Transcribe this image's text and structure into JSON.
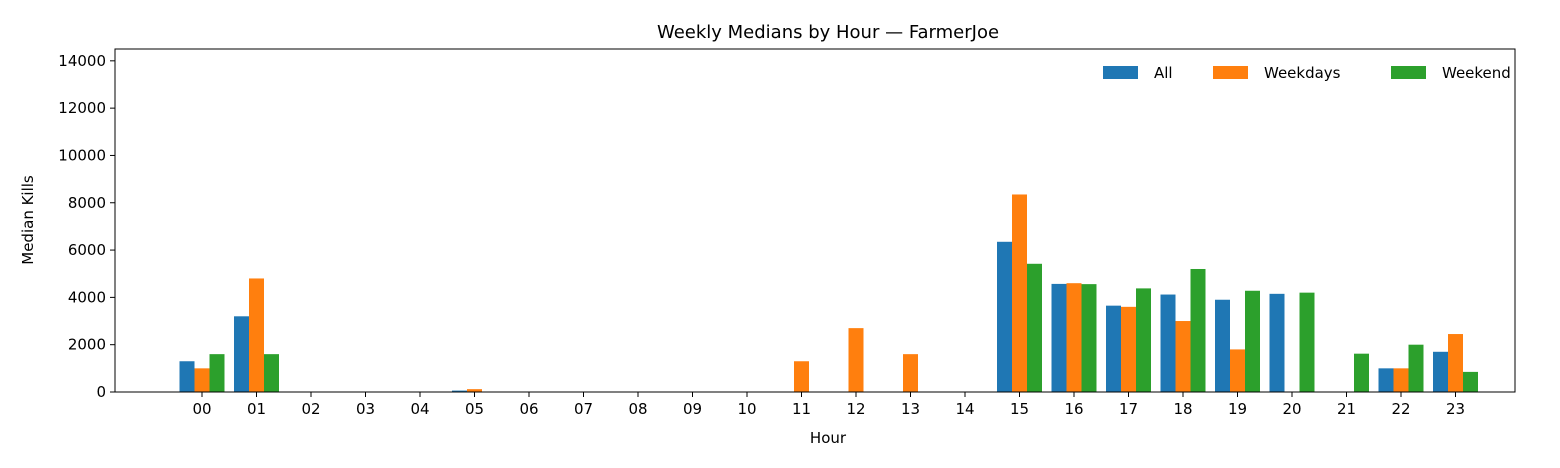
{
  "chart_data": {
    "type": "bar",
    "title": "Weekly Medians by Hour — FarmerJoe",
    "xlabel": "Hour",
    "ylabel": "Median Kills",
    "ylim": [
      0,
      14500
    ],
    "yticks": [
      0,
      2000,
      4000,
      6000,
      8000,
      10000,
      12000,
      14000
    ],
    "grid": false,
    "legend_position": "top-right",
    "categories": [
      "00",
      "01",
      "02",
      "03",
      "04",
      "05",
      "06",
      "07",
      "08",
      "09",
      "10",
      "11",
      "12",
      "13",
      "14",
      "15",
      "16",
      "17",
      "18",
      "19",
      "20",
      "21",
      "22",
      "23"
    ],
    "series": [
      {
        "name": "All",
        "color": "#1f77b4",
        "values": [
          1300,
          3200,
          0,
          0,
          0,
          60,
          0,
          0,
          0,
          0,
          0,
          0,
          0,
          0,
          0,
          6350,
          4570,
          3650,
          4120,
          3900,
          4150,
          0,
          1000,
          1700
        ]
      },
      {
        "name": "Weekdays",
        "color": "#ff7f0e",
        "values": [
          1000,
          4800,
          0,
          0,
          0,
          120,
          0,
          0,
          0,
          0,
          0,
          1300,
          2700,
          1600,
          0,
          8350,
          4600,
          3600,
          3000,
          1800,
          0,
          0,
          1000,
          2450
        ]
      },
      {
        "name": "Weekend",
        "color": "#2ca02c",
        "values": [
          1600,
          1600,
          0,
          0,
          0,
          0,
          0,
          0,
          0,
          0,
          0,
          0,
          0,
          0,
          0,
          5420,
          4560,
          4380,
          5200,
          4280,
          4200,
          1620,
          2000,
          850
        ]
      }
    ]
  }
}
